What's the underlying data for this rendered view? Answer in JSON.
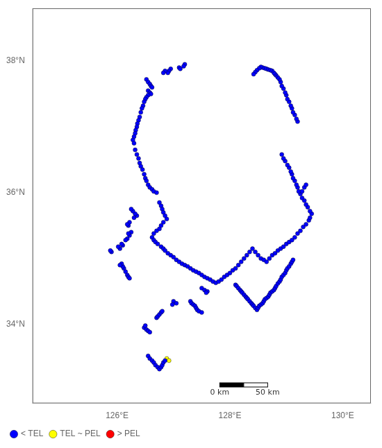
{
  "chart_data": {
    "type": "scatter",
    "xlim": [
      124.5,
      130.5
    ],
    "ylim": [
      32.8,
      38.8
    ],
    "xticks": [
      {
        "value": 126,
        "label": "126°E"
      },
      {
        "value": 128,
        "label": "128°E"
      },
      {
        "value": 130,
        "label": "130°E"
      }
    ],
    "yticks": [
      {
        "value": 34,
        "label": "34°N"
      },
      {
        "value": 36,
        "label": "36°N"
      },
      {
        "value": 38,
        "label": "38°N"
      }
    ],
    "grid": false,
    "legend": "lower left",
    "series": [
      {
        "name": "< TEL",
        "color": "blue",
        "values": [
          [
            126.52,
            37.72
          ],
          [
            126.55,
            37.68
          ],
          [
            126.58,
            37.65
          ],
          [
            126.6,
            37.62
          ],
          [
            126.62,
            37.6
          ],
          [
            126.55,
            37.55
          ],
          [
            126.58,
            37.52
          ],
          [
            126.6,
            37.5
          ],
          [
            126.55,
            37.48
          ],
          [
            126.52,
            37.45
          ],
          [
            126.5,
            37.42
          ],
          [
            126.48,
            37.38
          ],
          [
            126.46,
            37.32
          ],
          [
            126.44,
            37.28
          ],
          [
            126.42,
            37.22
          ],
          [
            126.4,
            37.15
          ],
          [
            126.38,
            37.1
          ],
          [
            126.36,
            37.05
          ],
          [
            126.35,
            37.0
          ],
          [
            126.33,
            36.95
          ],
          [
            126.32,
            36.9
          ],
          [
            126.3,
            36.85
          ],
          [
            126.28,
            36.8
          ],
          [
            126.3,
            36.75
          ],
          [
            126.32,
            36.65
          ],
          [
            126.35,
            36.58
          ],
          [
            126.38,
            36.52
          ],
          [
            126.4,
            36.45
          ],
          [
            126.42,
            36.4
          ],
          [
            126.45,
            36.35
          ],
          [
            126.48,
            36.28
          ],
          [
            126.5,
            36.22
          ],
          [
            126.52,
            36.18
          ],
          [
            126.55,
            36.12
          ],
          [
            126.58,
            36.08
          ],
          [
            126.62,
            36.05
          ],
          [
            126.65,
            36.02
          ],
          [
            126.7,
            36.0
          ],
          [
            126.75,
            35.85
          ],
          [
            126.78,
            35.8
          ],
          [
            126.8,
            35.75
          ],
          [
            126.82,
            35.7
          ],
          [
            126.85,
            35.65
          ],
          [
            126.88,
            35.6
          ],
          [
            126.82,
            35.55
          ],
          [
            126.78,
            35.5
          ],
          [
            126.75,
            35.45
          ],
          [
            126.7,
            35.42
          ],
          [
            126.65,
            35.38
          ],
          [
            126.62,
            35.32
          ],
          [
            126.65,
            35.28
          ],
          [
            126.68,
            35.25
          ],
          [
            126.72,
            35.22
          ],
          [
            126.78,
            35.18
          ],
          [
            126.82,
            35.15
          ],
          [
            126.85,
            35.12
          ],
          [
            126.9,
            35.08
          ],
          [
            126.95,
            35.05
          ],
          [
            127.0,
            35.02
          ],
          [
            127.05,
            34.98
          ],
          [
            127.1,
            34.95
          ],
          [
            127.15,
            34.92
          ],
          [
            127.2,
            34.9
          ],
          [
            127.25,
            34.88
          ],
          [
            127.3,
            34.85
          ],
          [
            127.35,
            34.82
          ],
          [
            127.4,
            34.8
          ],
          [
            127.45,
            34.78
          ],
          [
            127.5,
            34.75
          ],
          [
            127.55,
            34.72
          ],
          [
            127.6,
            34.7
          ],
          [
            127.65,
            34.68
          ],
          [
            127.7,
            34.65
          ],
          [
            127.75,
            34.63
          ],
          [
            127.8,
            34.65
          ],
          [
            127.85,
            34.68
          ],
          [
            127.9,
            34.72
          ],
          [
            127.95,
            34.75
          ],
          [
            128.0,
            34.78
          ],
          [
            128.05,
            34.82
          ],
          [
            128.1,
            34.85
          ],
          [
            128.15,
            34.9
          ],
          [
            128.2,
            34.95
          ],
          [
            128.25,
            35.0
          ],
          [
            128.3,
            35.05
          ],
          [
            128.35,
            35.1
          ],
          [
            128.4,
            35.15
          ],
          [
            128.45,
            35.1
          ],
          [
            128.5,
            35.05
          ],
          [
            128.55,
            35.0
          ],
          [
            128.6,
            34.98
          ],
          [
            128.65,
            34.95
          ],
          [
            128.7,
            35.0
          ],
          [
            128.75,
            35.05
          ],
          [
            128.8,
            35.08
          ],
          [
            128.85,
            35.12
          ],
          [
            128.9,
            35.15
          ],
          [
            128.95,
            35.18
          ],
          [
            129.0,
            35.22
          ],
          [
            129.05,
            35.25
          ],
          [
            129.1,
            35.28
          ],
          [
            129.15,
            35.32
          ],
          [
            129.2,
            35.38
          ],
          [
            129.25,
            35.42
          ],
          [
            129.3,
            35.48
          ],
          [
            129.35,
            35.52
          ],
          [
            129.4,
            35.58
          ],
          [
            129.42,
            35.62
          ],
          [
            129.45,
            35.68
          ],
          [
            129.42,
            35.72
          ],
          [
            129.38,
            35.78
          ],
          [
            129.35,
            35.82
          ],
          [
            129.32,
            35.88
          ],
          [
            129.28,
            35.92
          ],
          [
            129.25,
            35.98
          ],
          [
            129.22,
            36.02
          ],
          [
            129.2,
            36.08
          ],
          [
            129.18,
            36.12
          ],
          [
            129.15,
            36.18
          ],
          [
            129.12,
            36.22
          ],
          [
            129.1,
            36.28
          ],
          [
            129.08,
            36.32
          ],
          [
            129.05,
            36.38
          ],
          [
            129.02,
            36.42
          ],
          [
            128.98,
            36.48
          ],
          [
            128.95,
            36.52
          ],
          [
            128.92,
            36.58
          ],
          [
            129.28,
            36.02
          ],
          [
            129.32,
            36.08
          ],
          [
            129.35,
            36.12
          ],
          [
            129.2,
            37.08
          ],
          [
            129.18,
            37.12
          ],
          [
            129.15,
            37.18
          ],
          [
            129.12,
            37.22
          ],
          [
            129.1,
            37.28
          ],
          [
            129.08,
            37.32
          ],
          [
            129.05,
            37.38
          ],
          [
            129.02,
            37.42
          ],
          [
            129.0,
            37.48
          ],
          [
            128.98,
            37.52
          ],
          [
            128.95,
            37.58
          ],
          [
            128.92,
            37.62
          ],
          [
            128.9,
            37.68
          ],
          [
            128.88,
            37.72
          ],
          [
            128.85,
            37.75
          ],
          [
            128.82,
            37.78
          ],
          [
            128.8,
            37.8
          ],
          [
            128.78,
            37.82
          ],
          [
            128.75,
            37.85
          ],
          [
            128.72,
            37.86
          ],
          [
            128.68,
            37.87
          ],
          [
            128.65,
            37.88
          ],
          [
            128.62,
            37.89
          ],
          [
            128.58,
            37.9
          ],
          [
            128.55,
            37.91
          ],
          [
            128.52,
            37.89
          ],
          [
            128.48,
            37.86
          ],
          [
            128.45,
            37.83
          ],
          [
            128.42,
            37.8
          ],
          [
            127.2,
            37.95
          ],
          [
            127.18,
            37.92
          ],
          [
            126.95,
            37.88
          ],
          [
            126.92,
            37.85
          ],
          [
            126.9,
            37.82
          ],
          [
            126.85,
            37.85
          ],
          [
            126.82,
            37.82
          ],
          [
            127.1,
            37.9
          ],
          [
            127.12,
            37.88
          ],
          [
            127.0,
            34.35
          ],
          [
            127.05,
            34.32
          ],
          [
            126.98,
            34.3
          ],
          [
            126.35,
            35.65
          ],
          [
            126.32,
            35.68
          ],
          [
            126.3,
            35.62
          ],
          [
            126.28,
            35.72
          ],
          [
            126.25,
            35.75
          ],
          [
            126.2,
            35.5
          ],
          [
            126.22,
            35.55
          ],
          [
            126.18,
            35.52
          ],
          [
            126.25,
            35.4
          ],
          [
            126.22,
            35.35
          ],
          [
            126.2,
            35.38
          ],
          [
            126.18,
            35.3
          ],
          [
            126.15,
            35.28
          ],
          [
            126.1,
            35.2
          ],
          [
            126.08,
            35.22
          ],
          [
            126.05,
            35.15
          ],
          [
            126.02,
            35.18
          ],
          [
            125.9,
            35.1
          ],
          [
            125.88,
            35.12
          ],
          [
            126.12,
            34.85
          ],
          [
            126.1,
            34.88
          ],
          [
            126.08,
            34.92
          ],
          [
            126.05,
            34.9
          ],
          [
            126.15,
            34.8
          ],
          [
            126.18,
            34.75
          ],
          [
            126.2,
            34.72
          ],
          [
            126.22,
            34.7
          ],
          [
            127.5,
            34.55
          ],
          [
            127.55,
            34.52
          ],
          [
            127.6,
            34.5
          ],
          [
            127.58,
            34.48
          ],
          [
            128.1,
            34.6
          ],
          [
            128.12,
            34.58
          ],
          [
            128.15,
            34.55
          ],
          [
            128.18,
            34.52
          ],
          [
            128.2,
            34.5
          ],
          [
            128.22,
            34.48
          ],
          [
            128.25,
            34.45
          ],
          [
            128.28,
            34.42
          ],
          [
            128.3,
            34.4
          ],
          [
            128.32,
            34.38
          ],
          [
            128.35,
            34.35
          ],
          [
            128.38,
            34.32
          ],
          [
            128.4,
            34.3
          ],
          [
            128.42,
            34.28
          ],
          [
            128.45,
            34.25
          ],
          [
            128.48,
            34.22
          ],
          [
            128.5,
            34.25
          ],
          [
            128.52,
            34.28
          ],
          [
            128.55,
            34.3
          ],
          [
            128.58,
            34.32
          ],
          [
            128.6,
            34.35
          ],
          [
            128.62,
            34.38
          ],
          [
            128.65,
            34.4
          ],
          [
            128.68,
            34.42
          ],
          [
            128.7,
            34.45
          ],
          [
            128.72,
            34.48
          ],
          [
            128.75,
            34.5
          ],
          [
            128.78,
            34.52
          ],
          [
            128.8,
            34.55
          ],
          [
            128.82,
            34.58
          ],
          [
            128.85,
            34.62
          ],
          [
            128.88,
            34.65
          ],
          [
            128.9,
            34.68
          ],
          [
            128.92,
            34.72
          ],
          [
            128.95,
            34.75
          ],
          [
            128.98,
            34.78
          ],
          [
            129.0,
            34.82
          ],
          [
            129.02,
            34.85
          ],
          [
            129.05,
            34.88
          ],
          [
            129.08,
            34.92
          ],
          [
            129.1,
            34.95
          ],
          [
            129.12,
            34.98
          ],
          [
            127.3,
            34.35
          ],
          [
            127.32,
            34.32
          ],
          [
            127.35,
            34.3
          ],
          [
            127.38,
            34.28
          ],
          [
            127.4,
            34.25
          ],
          [
            127.42,
            34.22
          ],
          [
            127.45,
            34.2
          ],
          [
            127.5,
            34.18
          ],
          [
            126.7,
            34.1
          ],
          [
            126.72,
            34.12
          ],
          [
            126.75,
            34.15
          ],
          [
            126.78,
            34.18
          ],
          [
            126.8,
            34.2
          ],
          [
            126.48,
            33.95
          ],
          [
            126.5,
            33.98
          ],
          [
            126.52,
            33.92
          ],
          [
            126.55,
            33.9
          ],
          [
            126.58,
            33.88
          ],
          [
            126.55,
            33.52
          ],
          [
            126.58,
            33.48
          ],
          [
            126.62,
            33.45
          ],
          [
            126.65,
            33.42
          ],
          [
            126.68,
            33.38
          ],
          [
            126.72,
            33.35
          ],
          [
            126.75,
            33.32
          ],
          [
            126.78,
            33.35
          ],
          [
            126.8,
            33.38
          ],
          [
            126.82,
            33.42
          ],
          [
            126.85,
            33.45
          ]
        ]
      },
      {
        "name": "TEL ~ PEL",
        "color": "yellow",
        "values": [
          [
            126.88,
            33.48
          ],
          [
            126.92,
            33.45
          ]
        ]
      },
      {
        "name": "> PEL",
        "color": "red",
        "values": []
      }
    ],
    "annotations": [
      {
        "text": "0 km",
        "x": 127.82,
        "y": 33.08
      },
      {
        "text": "50 km",
        "x": 128.67,
        "y": 33.08
      }
    ]
  }
}
